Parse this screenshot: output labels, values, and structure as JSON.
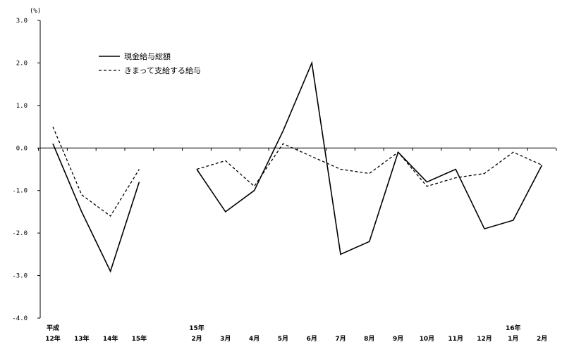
{
  "chart_data": {
    "type": "line",
    "unit_label": "(%)",
    "ylim": [
      -4.0,
      3.0
    ],
    "y_ticks": [
      "3.0",
      "2.0",
      "1.0",
      "0.0",
      "-1.0",
      "-2.0",
      "-3.0",
      "-4.0"
    ],
    "x_labels": [
      {
        "top": "平成",
        "bottom": "12年"
      },
      {
        "top": "",
        "bottom": "13年"
      },
      {
        "top": "",
        "bottom": "14年"
      },
      {
        "top": "",
        "bottom": "15年"
      },
      {
        "top": "",
        "bottom": ""
      },
      {
        "top": "15年",
        "bottom": "2月"
      },
      {
        "top": "",
        "bottom": "3月"
      },
      {
        "top": "",
        "bottom": "4月"
      },
      {
        "top": "",
        "bottom": "5月"
      },
      {
        "top": "",
        "bottom": "6月"
      },
      {
        "top": "",
        "bottom": "7月"
      },
      {
        "top": "",
        "bottom": "8月"
      },
      {
        "top": "",
        "bottom": "9月"
      },
      {
        "top": "",
        "bottom": "10月"
      },
      {
        "top": "",
        "bottom": "11月"
      },
      {
        "top": "",
        "bottom": "12月"
      },
      {
        "top": "16年",
        "bottom": "1月"
      },
      {
        "top": "",
        "bottom": "2月"
      }
    ],
    "series": [
      {
        "name": "現金給与総額",
        "style": "solid",
        "color": "#000000",
        "segments": [
          [
            [
              0,
              0.1
            ],
            [
              1,
              -1.5
            ],
            [
              2,
              -2.9
            ],
            [
              3,
              -0.8
            ]
          ],
          [
            [
              5,
              -0.5
            ],
            [
              6,
              -1.5
            ],
            [
              7,
              -1.0
            ],
            [
              8,
              0.4
            ],
            [
              9,
              2.0
            ],
            [
              10,
              -2.5
            ],
            [
              11,
              -2.2
            ],
            [
              12,
              -0.1
            ],
            [
              13,
              -0.8
            ],
            [
              14,
              -0.5
            ],
            [
              15,
              -1.9
            ],
            [
              16,
              -1.7
            ],
            [
              17,
              -0.4
            ]
          ]
        ]
      },
      {
        "name": "きまって支給する給与",
        "style": "dashed",
        "color": "#000000",
        "segments": [
          [
            [
              0,
              0.5
            ],
            [
              1,
              -1.1
            ],
            [
              2,
              -1.6
            ],
            [
              3,
              -0.5
            ]
          ],
          [
            [
              5,
              -0.5
            ],
            [
              6,
              -0.3
            ],
            [
              7,
              -0.9
            ],
            [
              8,
              0.1
            ],
            [
              9,
              -0.2
            ],
            [
              10,
              -0.5
            ],
            [
              11,
              -0.6
            ],
            [
              12,
              -0.1
            ],
            [
              13,
              -0.9
            ],
            [
              14,
              -0.7
            ],
            [
              15,
              -0.6
            ],
            [
              16,
              -0.1
            ],
            [
              17,
              -0.4
            ]
          ]
        ]
      }
    ],
    "legend": "top-left",
    "grid": false
  }
}
